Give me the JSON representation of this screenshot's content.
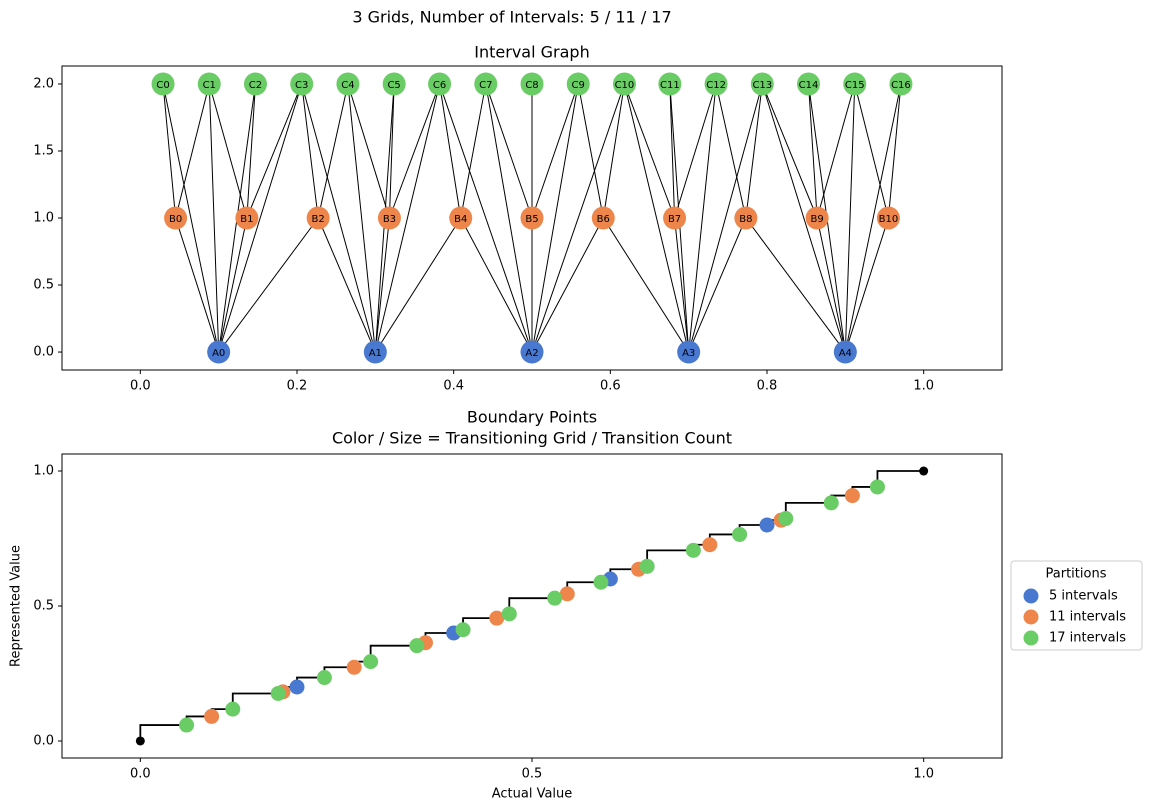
{
  "title": "3 Grids, Number of Intervals: 5 / 11 / 17",
  "chart_data": [
    {
      "type": "network",
      "title": "Interval Graph",
      "xlim": [
        -0.1,
        1.1
      ],
      "ylim": [
        -0.134,
        2.134
      ],
      "xticks": [
        {
          "value": 0,
          "label": "0.0"
        },
        0.2,
        0.4,
        0.6,
        0.8,
        {
          "value": 1,
          "label": "1.0"
        }
      ],
      "yticks": [
        {
          "value": 0,
          "label": "0.0"
        },
        0.5,
        {
          "value": 1,
          "label": "1.0"
        },
        1.5,
        {
          "value": 2,
          "label": "2.0"
        }
      ],
      "nodes": [
        {
          "label": "A0",
          "x": 0.1,
          "y": 0,
          "color": "#4878d0"
        },
        {
          "label": "A1",
          "x": 0.3,
          "y": 0,
          "color": "#4878d0"
        },
        {
          "label": "A2",
          "x": 0.5,
          "y": 0,
          "color": "#4878d0"
        },
        {
          "label": "A3",
          "x": 0.7,
          "y": 0,
          "color": "#4878d0"
        },
        {
          "label": "A4",
          "x": 0.9,
          "y": 0,
          "color": "#4878d0"
        },
        {
          "label": "B0",
          "x": 0.045,
          "y": 1,
          "color": "#ee854a"
        },
        {
          "label": "B1",
          "x": 0.136,
          "y": 1,
          "color": "#ee854a"
        },
        {
          "label": "B2",
          "x": 0.227,
          "y": 1,
          "color": "#ee854a"
        },
        {
          "label": "B3",
          "x": 0.318,
          "y": 1,
          "color": "#ee854a"
        },
        {
          "label": "B4",
          "x": 0.409,
          "y": 1,
          "color": "#ee854a"
        },
        {
          "label": "B5",
          "x": 0.5,
          "y": 1,
          "color": "#ee854a"
        },
        {
          "label": "B6",
          "x": 0.591,
          "y": 1,
          "color": "#ee854a"
        },
        {
          "label": "B7",
          "x": 0.682,
          "y": 1,
          "color": "#ee854a"
        },
        {
          "label": "B8",
          "x": 0.773,
          "y": 1,
          "color": "#ee854a"
        },
        {
          "label": "B9",
          "x": 0.864,
          "y": 1,
          "color": "#ee854a"
        },
        {
          "label": "B10",
          "x": 0.955,
          "y": 1,
          "color": "#ee854a"
        },
        {
          "label": "C0",
          "x": 0.029,
          "y": 2,
          "color": "#6acc64"
        },
        {
          "label": "C1",
          "x": 0.088,
          "y": 2,
          "color": "#6acc64"
        },
        {
          "label": "C2",
          "x": 0.147,
          "y": 2,
          "color": "#6acc64"
        },
        {
          "label": "C3",
          "x": 0.206,
          "y": 2,
          "color": "#6acc64"
        },
        {
          "label": "C4",
          "x": 0.265,
          "y": 2,
          "color": "#6acc64"
        },
        {
          "label": "C5",
          "x": 0.324,
          "y": 2,
          "color": "#6acc64"
        },
        {
          "label": "C6",
          "x": 0.382,
          "y": 2,
          "color": "#6acc64"
        },
        {
          "label": "C7",
          "x": 0.441,
          "y": 2,
          "color": "#6acc64"
        },
        {
          "label": "C8",
          "x": 0.5,
          "y": 2,
          "color": "#6acc64"
        },
        {
          "label": "C9",
          "x": 0.559,
          "y": 2,
          "color": "#6acc64"
        },
        {
          "label": "C10",
          "x": 0.618,
          "y": 2,
          "color": "#6acc64"
        },
        {
          "label": "C11",
          "x": 0.676,
          "y": 2,
          "color": "#6acc64"
        },
        {
          "label": "C12",
          "x": 0.735,
          "y": 2,
          "color": "#6acc64"
        },
        {
          "label": "C13",
          "x": 0.794,
          "y": 2,
          "color": "#6acc64"
        },
        {
          "label": "C14",
          "x": 0.853,
          "y": 2,
          "color": "#6acc64"
        },
        {
          "label": "C15",
          "x": 0.912,
          "y": 2,
          "color": "#6acc64"
        },
        {
          "label": "C16",
          "x": 0.971,
          "y": 2,
          "color": "#6acc64"
        }
      ],
      "edges": [
        [
          0,
          5
        ],
        [
          0,
          6
        ],
        [
          0,
          7
        ],
        [
          1,
          7
        ],
        [
          1,
          8
        ],
        [
          1,
          9
        ],
        [
          2,
          9
        ],
        [
          2,
          10
        ],
        [
          2,
          11
        ],
        [
          3,
          11
        ],
        [
          3,
          12
        ],
        [
          3,
          13
        ],
        [
          4,
          13
        ],
        [
          4,
          14
        ],
        [
          4,
          15
        ],
        [
          0,
          16
        ],
        [
          0,
          17
        ],
        [
          0,
          18
        ],
        [
          0,
          19
        ],
        [
          1,
          19
        ],
        [
          1,
          20
        ],
        [
          1,
          21
        ],
        [
          1,
          22
        ],
        [
          2,
          22
        ],
        [
          2,
          23
        ],
        [
          2,
          24
        ],
        [
          2,
          25
        ],
        [
          2,
          26
        ],
        [
          3,
          26
        ],
        [
          3,
          27
        ],
        [
          3,
          28
        ],
        [
          3,
          29
        ],
        [
          4,
          29
        ],
        [
          4,
          30
        ],
        [
          4,
          31
        ],
        [
          4,
          32
        ],
        [
          5,
          16
        ],
        [
          5,
          17
        ],
        [
          6,
          17
        ],
        [
          6,
          18
        ],
        [
          6,
          19
        ],
        [
          7,
          19
        ],
        [
          7,
          20
        ],
        [
          8,
          20
        ],
        [
          8,
          21
        ],
        [
          8,
          22
        ],
        [
          9,
          22
        ],
        [
          9,
          23
        ],
        [
          10,
          23
        ],
        [
          10,
          24
        ],
        [
          10,
          25
        ],
        [
          11,
          25
        ],
        [
          11,
          26
        ],
        [
          12,
          26
        ],
        [
          12,
          27
        ],
        [
          12,
          28
        ],
        [
          13,
          28
        ],
        [
          13,
          29
        ],
        [
          14,
          29
        ],
        [
          14,
          30
        ],
        [
          14,
          31
        ],
        [
          15,
          31
        ],
        [
          15,
          32
        ]
      ],
      "edge_color": "#000000"
    },
    {
      "type": "scatter",
      "title": [
        "Boundary Points",
        "Color / Size = Transitioning Grid / Transition Count"
      ],
      "xlabel": "Actual Value",
      "ylabel": "Represented Value",
      "xlim": [
        -0.1,
        1.1
      ],
      "ylim": [
        -0.063,
        1.063
      ],
      "xticks": [
        {
          "value": 0,
          "label": "0.0"
        },
        0.5,
        {
          "value": 1,
          "label": "1.0"
        }
      ],
      "yticks": [
        {
          "value": 0,
          "label": "0.0"
        },
        0.5,
        {
          "value": 1,
          "label": "1.0"
        }
      ],
      "step": {
        "color": "#000000",
        "x": [
          0,
          0,
          0.059,
          0.091,
          0.118,
          0.176,
          0.182,
          0.2,
          0.235,
          0.273,
          0.294,
          0.353,
          0.364,
          0.4,
          0.412,
          0.455,
          0.471,
          0.529,
          0.545,
          0.588,
          0.6,
          0.636,
          0.647,
          0.706,
          0.727,
          0.765,
          0.8,
          0.818,
          0.824,
          0.882,
          0.909,
          0.941,
          1
        ],
        "y": [
          0,
          0.059,
          0.091,
          0.118,
          0.176,
          0.182,
          0.2,
          0.235,
          0.273,
          0.294,
          0.353,
          0.364,
          0.4,
          0.412,
          0.455,
          0.471,
          0.529,
          0.545,
          0.588,
          0.6,
          0.636,
          0.647,
          0.706,
          0.727,
          0.765,
          0.8,
          0.818,
          0.824,
          0.882,
          0.909,
          0.941,
          1,
          1
        ]
      },
      "endpoints": {
        "color": "#000000",
        "x": [
          0,
          1
        ],
        "y": [
          0,
          1
        ]
      },
      "series": [
        {
          "name": "5 intervals",
          "color": "#4878d0",
          "x": [
            0.2,
            0.4,
            0.6,
            0.8
          ],
          "values": [
            0.2,
            0.4,
            0.6,
            0.8
          ]
        },
        {
          "name": "11 intervals",
          "color": "#ee854a",
          "x": [
            0.091,
            0.182,
            0.273,
            0.364,
            0.455,
            0.545,
            0.636,
            0.727,
            0.818,
            0.909
          ],
          "values": [
            0.091,
            0.182,
            0.273,
            0.364,
            0.455,
            0.545,
            0.636,
            0.727,
            0.818,
            0.909
          ]
        },
        {
          "name": "17 intervals",
          "color": "#6acc64",
          "x": [
            0.059,
            0.118,
            0.176,
            0.235,
            0.294,
            0.353,
            0.412,
            0.471,
            0.529,
            0.588,
            0.647,
            0.706,
            0.765,
            0.824,
            0.882,
            0.941
          ],
          "values": [
            0.059,
            0.118,
            0.176,
            0.235,
            0.294,
            0.353,
            0.412,
            0.471,
            0.529,
            0.588,
            0.647,
            0.706,
            0.765,
            0.824,
            0.882,
            0.941
          ]
        }
      ],
      "legend": {
        "title": "Partitions",
        "loc": "right"
      }
    }
  ]
}
